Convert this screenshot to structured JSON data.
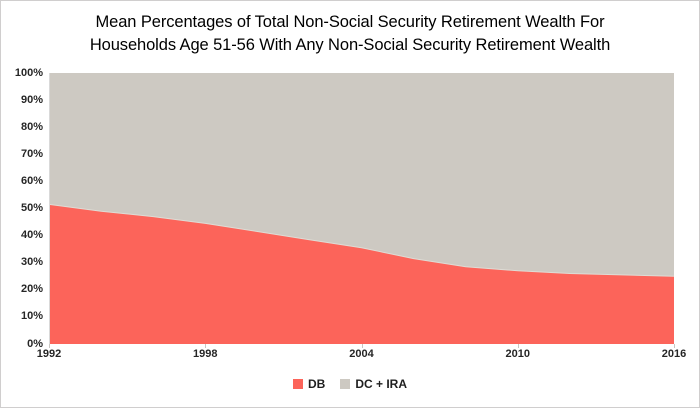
{
  "chart_data": {
    "type": "area",
    "stacked": true,
    "title_lines": [
      "Mean Percentages of Total Non-Social Security Retirement Wealth For",
      "Households Age 51-56 With Any Non-Social Security Retirement Wealth"
    ],
    "x": [
      1992,
      1994,
      1996,
      1998,
      2000,
      2002,
      2004,
      2006,
      2008,
      2010,
      2012,
      2014,
      2016
    ],
    "series": [
      {
        "name": "DB",
        "color": "#FC645A",
        "values": [
          51.5,
          49,
          47,
          44.5,
          41.5,
          38.5,
          35.5,
          31.5,
          28.5,
          27,
          26,
          25.5,
          25
        ]
      },
      {
        "name": "DC + IRA",
        "color": "#CDC9C2",
        "values": [
          48.5,
          51,
          53,
          55.5,
          58.5,
          61.5,
          64.5,
          68.5,
          71.5,
          73,
          74,
          74.5,
          75
        ]
      }
    ],
    "xlabel": "",
    "ylabel": "",
    "ylim": [
      0,
      100
    ],
    "xlim": [
      1992,
      2016
    ],
    "y_ticks": [
      "100%",
      "90%",
      "80%",
      "70%",
      "60%",
      "50%",
      "40%",
      "30%",
      "20%",
      "10%",
      "0%"
    ],
    "x_ticks": [
      1992,
      1998,
      2004,
      2010,
      2016
    ],
    "grid": false,
    "legend_position": "bottom"
  },
  "colors": {
    "background": "#FFFFFF",
    "canvas_border": "#D0CECE",
    "axis_line": "#D9D9D9",
    "tick_mark": "#C8C6C2",
    "boundary_halo": "#DFDCD5",
    "title_text": "#000000",
    "axis_text": "#262626"
  }
}
